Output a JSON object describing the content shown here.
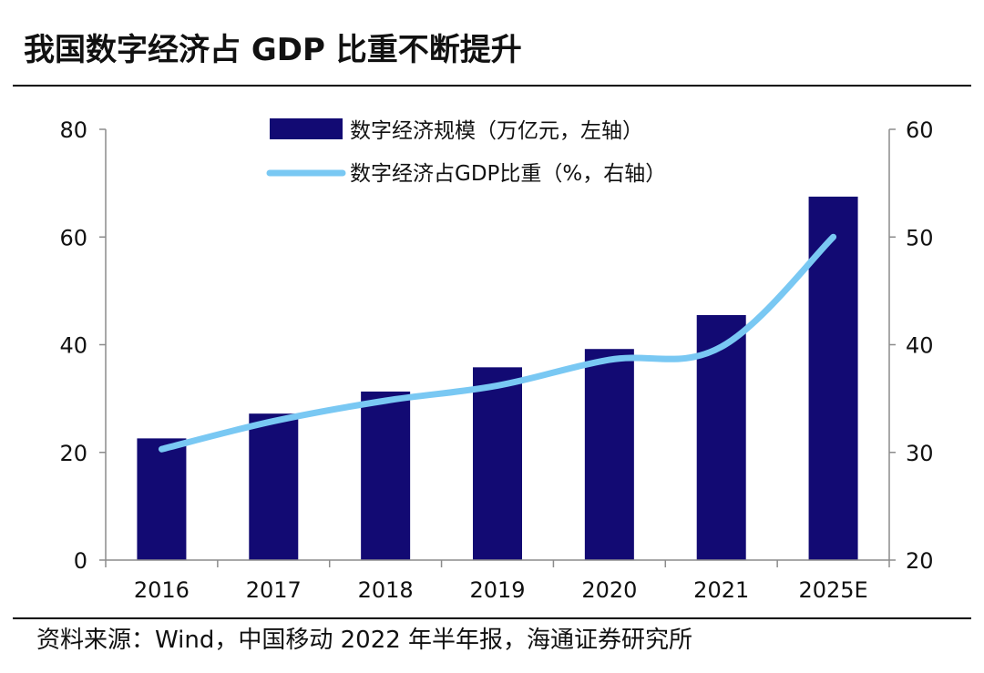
{
  "header": {
    "title": "我国数字经济占 GDP 比重不断提升"
  },
  "footer": {
    "source": "资料来源：Wind，中国移动 2022 年半年报，海通证券研究所"
  },
  "chart_data": {
    "type": "bar",
    "title": "我国数字经济占 GDP 比重不断提升",
    "categories": [
      "2016",
      "2017",
      "2018",
      "2019",
      "2020",
      "2021",
      "2025E"
    ],
    "series": [
      {
        "name": "数字经济规模（万亿元，左轴）",
        "kind": "bar",
        "axis": "left",
        "color": "#120a73",
        "values": [
          22.6,
          27.2,
          31.3,
          35.8,
          39.2,
          45.5,
          67.5
        ]
      },
      {
        "name": "数字经济占GDP比重（%，右轴）",
        "kind": "line",
        "axis": "right",
        "color": "#79c8f3",
        "values": [
          30.3,
          32.9,
          34.8,
          36.2,
          38.6,
          39.8,
          50.0
        ]
      }
    ],
    "y_left": {
      "ylim": [
        0,
        80
      ],
      "ticks": [
        "0",
        "20",
        "40",
        "60",
        "80"
      ]
    },
    "y_right": {
      "ylim": [
        20,
        60
      ],
      "ticks": [
        "20",
        "30",
        "40",
        "50",
        "60"
      ]
    },
    "grid": false,
    "legend_position": "top-center"
  }
}
